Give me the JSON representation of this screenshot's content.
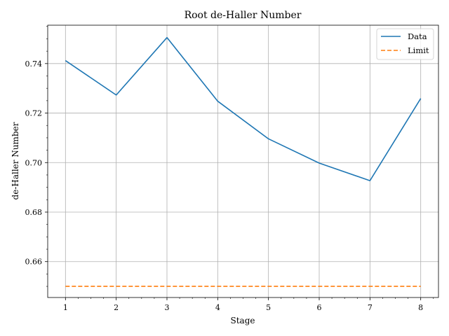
{
  "chart_data": {
    "type": "line",
    "title": "Root de-Haller Number",
    "xlabel": "Stage",
    "ylabel": "de-Haller Number",
    "x": [
      1,
      2,
      3,
      4,
      5,
      6,
      7,
      8
    ],
    "xticks": [
      "1",
      "2",
      "3",
      "4",
      "5",
      "6",
      "7",
      "8"
    ],
    "yticks": [
      "0.66",
      "0.68",
      "0.70",
      "0.72",
      "0.74"
    ],
    "xlim": [
      0.65,
      8.35
    ],
    "ylim": [
      0.6455,
      0.7555
    ],
    "grid": true,
    "legend": "top-right",
    "series": [
      {
        "name": "Data",
        "values": [
          0.7412,
          0.7273,
          0.7505,
          0.7248,
          0.7096,
          0.6998,
          0.6927,
          0.7259
        ],
        "color": "#1f77b4",
        "style": "solid"
      },
      {
        "name": "Limit",
        "values": [
          0.65,
          0.65,
          0.65,
          0.65,
          0.65,
          0.65,
          0.65,
          0.65
        ],
        "color": "#ff7f0e",
        "style": "dashed"
      }
    ]
  }
}
